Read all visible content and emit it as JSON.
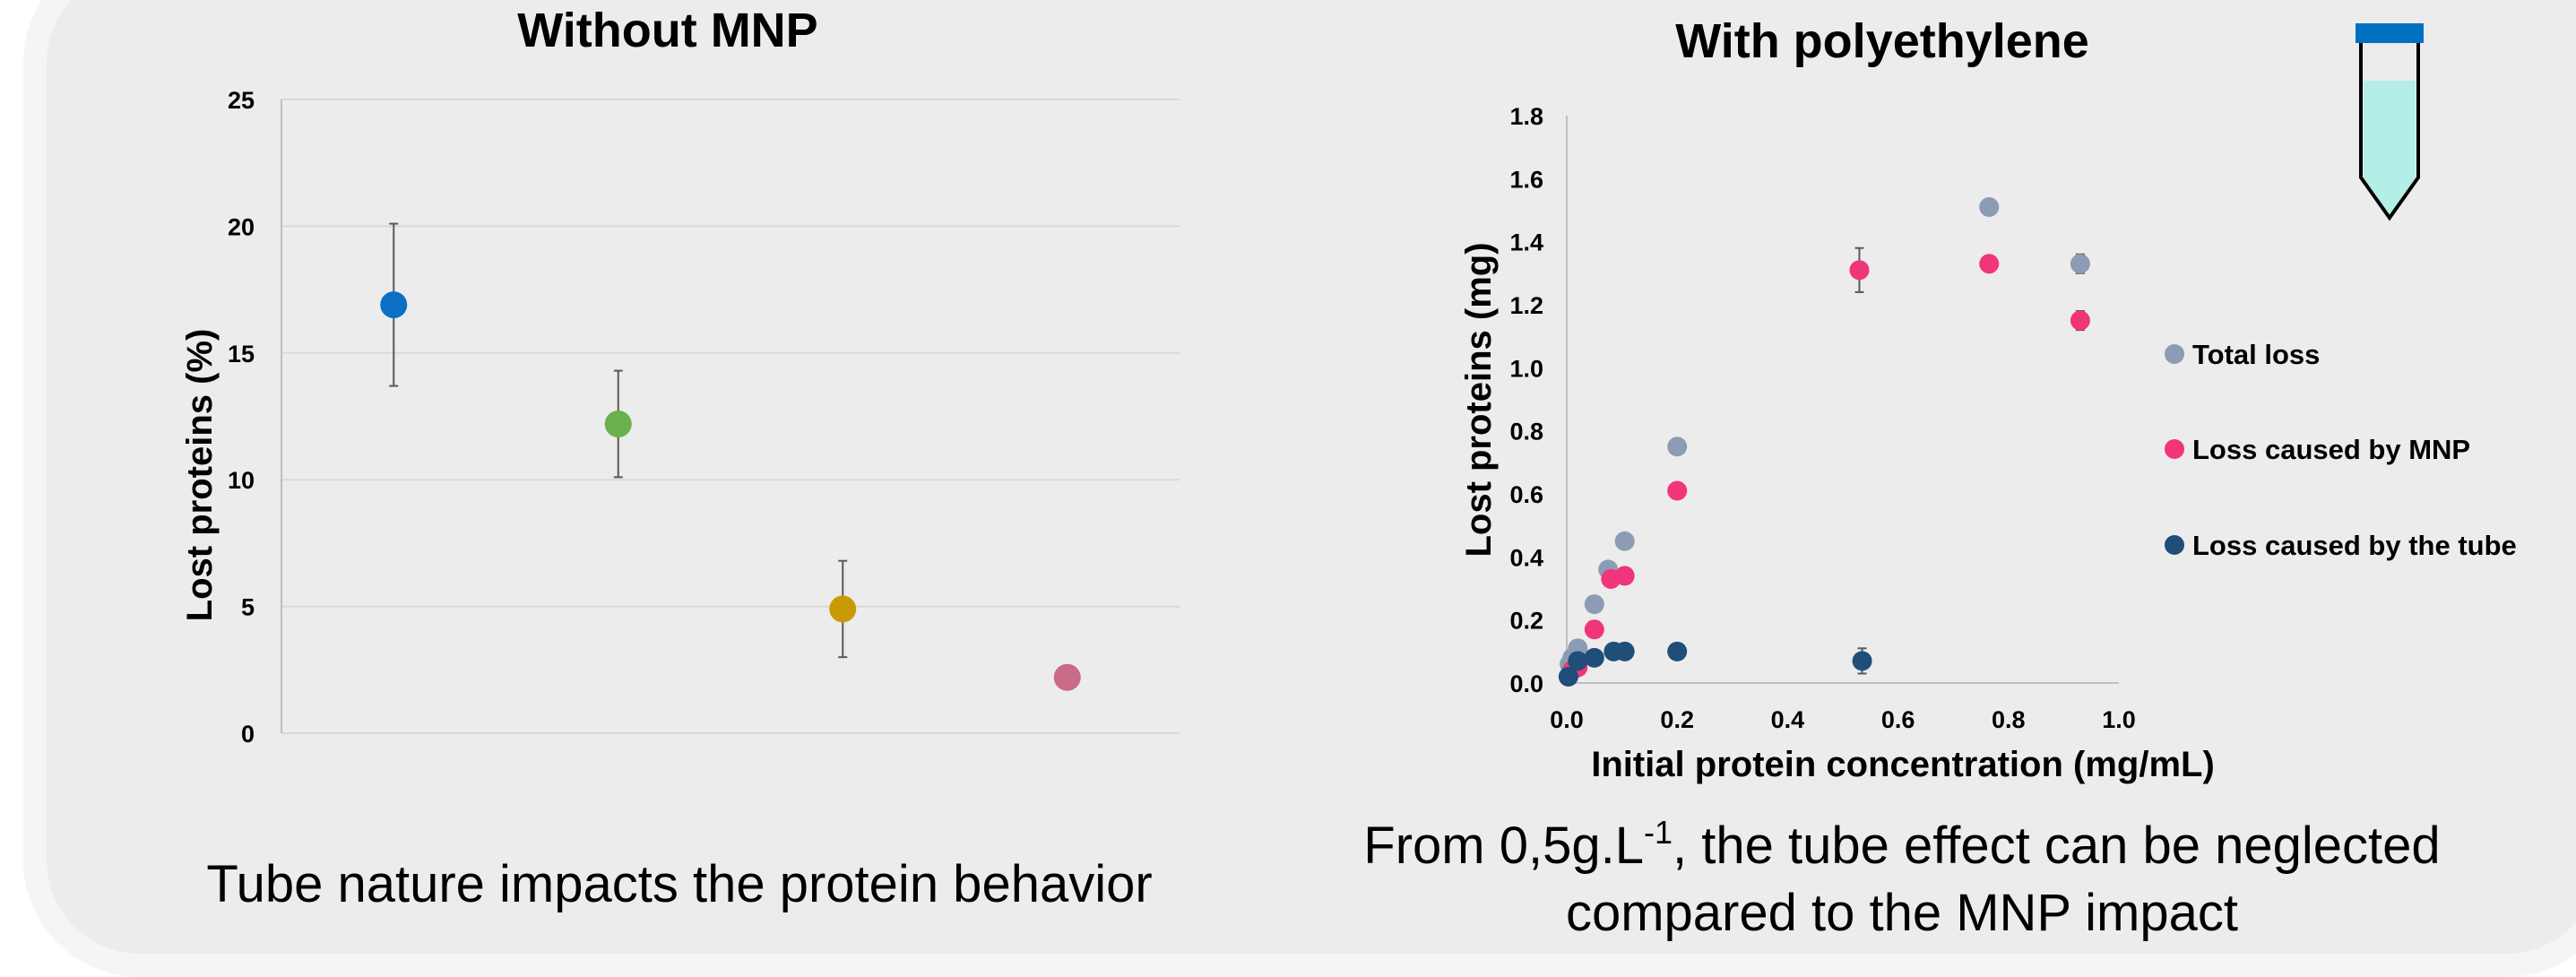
{
  "colors": {
    "background": "#ececec",
    "grid": "#d9d9d9",
    "axis": "#bfbfbf",
    "errorbar": "#595959",
    "total_loss": "#8c9cb4",
    "mnp_loss": "#f0357a",
    "tube_loss": "#1f4e79",
    "tube_cap": "#0070c0",
    "tube_liquid": "#b3efe6"
  },
  "chart_data": [
    {
      "type": "scatter",
      "title": "Without MNP",
      "xlabel": "",
      "ylabel": "Lost proteins (%)",
      "ylim": [
        0,
        25
      ],
      "yticks": [
        0,
        5,
        10,
        15,
        20,
        25
      ],
      "grid": true,
      "caption": "Tube nature impacts the protein behavior",
      "points": [
        {
          "x": 1,
          "y": 16.9,
          "error": 3.2,
          "color": "#0b70c4"
        },
        {
          "x": 2,
          "y": 12.2,
          "error": 2.1,
          "color": "#6ab04c"
        },
        {
          "x": 3,
          "y": 4.9,
          "error": 1.9,
          "color": "#c99a06"
        },
        {
          "x": 4,
          "y": 2.2,
          "error": 0.4,
          "color": "#c96a86"
        }
      ]
    },
    {
      "type": "scatter",
      "title": "With polyethylene",
      "xlabel": "Initial protein concentration (mg/mL)",
      "ylabel": "Lost proteins (mg)",
      "xlim": [
        0,
        1
      ],
      "ylim": [
        0,
        1.8
      ],
      "xticks": [
        "0.0",
        "0.2",
        "0.4",
        "0.6",
        "0.8",
        "1.0"
      ],
      "yticks": [
        "0.0",
        "0.2",
        "0.4",
        "0.6",
        "0.8",
        "1.0",
        "1.2",
        "1.4",
        "1.6",
        "1.8"
      ],
      "grid": false,
      "legend_position": "right",
      "caption": {
        "before": "From 0,5g.L",
        "superscript": "-1",
        "after": ", the tube effect can be neglected",
        "line2": "compared to the MNP impact"
      },
      "series": [
        {
          "name": "Total loss",
          "color": "#8c9cb4",
          "points": [
            [
              0.005,
              0.06
            ],
            [
              0.01,
              0.08
            ],
            [
              0.02,
              0.11
            ],
            [
              0.05,
              0.25
            ],
            [
              0.075,
              0.36
            ],
            [
              0.105,
              0.45
            ],
            [
              0.2,
              0.75
            ],
            [
              0.765,
              1.51
            ],
            [
              0.93,
              1.33
            ]
          ],
          "errors": [
            0,
            0,
            0,
            0,
            0,
            0,
            0,
            0,
            0.03
          ]
        },
        {
          "name": "Loss caused by MNP",
          "color": "#f0357a",
          "points": [
            [
              0.01,
              0.04
            ],
            [
              0.02,
              0.05
            ],
            [
              0.05,
              0.17
            ],
            [
              0.08,
              0.33
            ],
            [
              0.105,
              0.34
            ],
            [
              0.2,
              0.61
            ],
            [
              0.53,
              1.31
            ],
            [
              0.765,
              1.33
            ],
            [
              0.93,
              1.15
            ]
          ],
          "errors": [
            0,
            0,
            0,
            0,
            0,
            0,
            0.07,
            0,
            0.03
          ]
        },
        {
          "name": "Loss caused by the tube",
          "color": "#1f4e79",
          "points": [
            [
              0.003,
              0.02
            ],
            [
              0.02,
              0.07
            ],
            [
              0.05,
              0.08
            ],
            [
              0.085,
              0.1
            ],
            [
              0.105,
              0.1
            ],
            [
              0.2,
              0.1
            ],
            [
              0.535,
              0.07
            ]
          ],
          "errors": [
            0,
            0,
            0,
            0,
            0,
            0,
            0.04
          ]
        }
      ]
    }
  ]
}
